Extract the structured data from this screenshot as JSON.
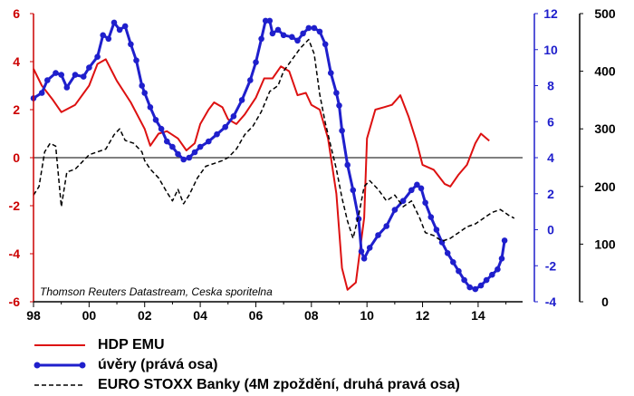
{
  "chart_data": {
    "type": "line",
    "annotation": "Thomson Reuters Datastream, Ceska sporitelna",
    "x_ticks": [
      "98",
      "00",
      "02",
      "04",
      "06",
      "08",
      "10",
      "12",
      "14"
    ],
    "axes": {
      "left": {
        "ylim": [
          -6,
          6
        ],
        "ticks": [
          "6",
          "4",
          "2",
          "0",
          "-2",
          "-4",
          "-6"
        ],
        "color": "#cc0000"
      },
      "right1": {
        "ylim": [
          -4,
          12
        ],
        "ticks": [
          "12",
          "10",
          "8",
          "6",
          "4",
          "2",
          "0",
          "-2",
          "-4"
        ],
        "color": "#1f1fcc"
      },
      "right2": {
        "ylim": [
          0,
          500
        ],
        "ticks": [
          "500",
          "400",
          "300",
          "200",
          "100",
          "0"
        ],
        "color": "#000000"
      }
    },
    "series": [
      {
        "name": "HDP EMU",
        "axis": "left",
        "color": "#dd1111",
        "style": "solid",
        "points": [
          [
            1998.0,
            3.7
          ],
          [
            1998.3,
            3.0
          ],
          [
            1998.7,
            2.4
          ],
          [
            1999.0,
            1.9
          ],
          [
            1999.5,
            2.2
          ],
          [
            2000.0,
            3.0
          ],
          [
            2000.3,
            3.9
          ],
          [
            2000.6,
            4.1
          ],
          [
            2001.0,
            3.2
          ],
          [
            2001.5,
            2.3
          ],
          [
            2002.0,
            1.2
          ],
          [
            2002.2,
            0.5
          ],
          [
            2002.5,
            1.0
          ],
          [
            2002.8,
            1.1
          ],
          [
            2003.2,
            0.8
          ],
          [
            2003.5,
            0.3
          ],
          [
            2003.8,
            0.6
          ],
          [
            2004.0,
            1.4
          ],
          [
            2004.3,
            2.0
          ],
          [
            2004.5,
            2.3
          ],
          [
            2004.8,
            2.1
          ],
          [
            2005.0,
            1.6
          ],
          [
            2005.3,
            1.4
          ],
          [
            2005.6,
            1.8
          ],
          [
            2006.0,
            2.5
          ],
          [
            2006.3,
            3.3
          ],
          [
            2006.6,
            3.3
          ],
          [
            2006.9,
            3.8
          ],
          [
            2007.2,
            3.6
          ],
          [
            2007.5,
            2.6
          ],
          [
            2007.8,
            2.7
          ],
          [
            2008.0,
            2.2
          ],
          [
            2008.3,
            2.0
          ],
          [
            2008.6,
            0.8
          ],
          [
            2008.9,
            -1.5
          ],
          [
            2009.1,
            -4.6
          ],
          [
            2009.3,
            -5.5
          ],
          [
            2009.6,
            -5.2
          ],
          [
            2009.9,
            -2.5
          ],
          [
            2010.0,
            0.8
          ],
          [
            2010.3,
            2.0
          ],
          [
            2010.6,
            2.1
          ],
          [
            2010.9,
            2.2
          ],
          [
            2011.2,
            2.6
          ],
          [
            2011.5,
            1.7
          ],
          [
            2011.8,
            0.6
          ],
          [
            2012.0,
            -0.3
          ],
          [
            2012.4,
            -0.5
          ],
          [
            2012.8,
            -1.1
          ],
          [
            2013.0,
            -1.2
          ],
          [
            2013.3,
            -0.7
          ],
          [
            2013.6,
            -0.3
          ],
          [
            2013.9,
            0.6
          ],
          [
            2014.1,
            1.0
          ],
          [
            2014.4,
            0.7
          ]
        ]
      },
      {
        "name": "úvěry (prává osa)",
        "axis": "right1",
        "color": "#1f1fcc",
        "style": "solid-markers",
        "points": [
          [
            1998.0,
            7.3
          ],
          [
            1998.3,
            7.6
          ],
          [
            1998.5,
            8.3
          ],
          [
            1998.8,
            8.7
          ],
          [
            1999.0,
            8.6
          ],
          [
            1999.2,
            7.9
          ],
          [
            1999.5,
            8.6
          ],
          [
            1999.8,
            8.5
          ],
          [
            2000.0,
            9.0
          ],
          [
            2000.3,
            9.6
          ],
          [
            2000.5,
            10.8
          ],
          [
            2000.7,
            10.6
          ],
          [
            2000.9,
            11.5
          ],
          [
            2001.1,
            11.1
          ],
          [
            2001.3,
            11.3
          ],
          [
            2001.5,
            10.3
          ],
          [
            2001.7,
            9.4
          ],
          [
            2001.9,
            8.0
          ],
          [
            2002.0,
            7.6
          ],
          [
            2002.2,
            6.8
          ],
          [
            2002.4,
            6.1
          ],
          [
            2002.6,
            5.6
          ],
          [
            2002.8,
            4.9
          ],
          [
            2003.0,
            4.6
          ],
          [
            2003.2,
            4.2
          ],
          [
            2003.4,
            3.9
          ],
          [
            2003.6,
            4.0
          ],
          [
            2003.8,
            4.3
          ],
          [
            2004.0,
            4.6
          ],
          [
            2004.3,
            4.9
          ],
          [
            2004.6,
            5.3
          ],
          [
            2004.9,
            5.7
          ],
          [
            2005.2,
            6.3
          ],
          [
            2005.5,
            7.2
          ],
          [
            2005.8,
            8.3
          ],
          [
            2006.0,
            9.3
          ],
          [
            2006.2,
            10.6
          ],
          [
            2006.35,
            11.6
          ],
          [
            2006.5,
            11.6
          ],
          [
            2006.6,
            10.9
          ],
          [
            2006.8,
            11.1
          ],
          [
            2007.0,
            10.8
          ],
          [
            2007.3,
            10.7
          ],
          [
            2007.5,
            10.5
          ],
          [
            2007.7,
            10.9
          ],
          [
            2007.9,
            11.2
          ],
          [
            2008.1,
            11.2
          ],
          [
            2008.3,
            11.0
          ],
          [
            2008.5,
            10.3
          ],
          [
            2008.7,
            8.7
          ],
          [
            2008.9,
            7.6
          ],
          [
            2009.0,
            6.9
          ],
          [
            2009.1,
            5.5
          ],
          [
            2009.3,
            3.6
          ],
          [
            2009.5,
            2.2
          ],
          [
            2009.7,
            0.6
          ],
          [
            2009.8,
            -1.2
          ],
          [
            2009.9,
            -1.6
          ],
          [
            2010.1,
            -1.0
          ],
          [
            2010.4,
            -0.3
          ],
          [
            2010.7,
            0.2
          ],
          [
            2011.0,
            1.1
          ],
          [
            2011.3,
            1.6
          ],
          [
            2011.6,
            2.2
          ],
          [
            2011.8,
            2.5
          ],
          [
            2011.95,
            2.3
          ],
          [
            2012.1,
            1.5
          ],
          [
            2012.3,
            0.7
          ],
          [
            2012.5,
            0.0
          ],
          [
            2012.7,
            -0.7
          ],
          [
            2012.9,
            -1.3
          ],
          [
            2013.1,
            -1.8
          ],
          [
            2013.3,
            -2.3
          ],
          [
            2013.5,
            -2.8
          ],
          [
            2013.7,
            -3.2
          ],
          [
            2013.9,
            -3.3
          ],
          [
            2014.1,
            -3.1
          ],
          [
            2014.3,
            -2.8
          ],
          [
            2014.5,
            -2.5
          ],
          [
            2014.7,
            -2.2
          ],
          [
            2014.85,
            -1.6
          ],
          [
            2014.95,
            -0.6
          ]
        ]
      },
      {
        "name": "EURO STOXX Banky (4M zpoždění, druhá pravá osa)",
        "axis": "right2",
        "color": "#000000",
        "style": "dashed",
        "points": [
          [
            1998.0,
            185
          ],
          [
            1998.2,
            200
          ],
          [
            1998.4,
            260
          ],
          [
            1998.6,
            275
          ],
          [
            1998.8,
            270
          ],
          [
            1999.0,
            165
          ],
          [
            1999.2,
            225
          ],
          [
            1999.5,
            230
          ],
          [
            1999.8,
            245
          ],
          [
            2000.0,
            255
          ],
          [
            2000.3,
            260
          ],
          [
            2000.6,
            265
          ],
          [
            2000.9,
            290
          ],
          [
            2001.1,
            300
          ],
          [
            2001.3,
            280
          ],
          [
            2001.6,
            275
          ],
          [
            2001.9,
            260
          ],
          [
            2002.0,
            245
          ],
          [
            2002.2,
            230
          ],
          [
            2002.5,
            215
          ],
          [
            2002.8,
            190
          ],
          [
            2003.0,
            175
          ],
          [
            2003.2,
            195
          ],
          [
            2003.4,
            170
          ],
          [
            2003.6,
            185
          ],
          [
            2003.9,
            215
          ],
          [
            2004.2,
            235
          ],
          [
            2004.5,
            240
          ],
          [
            2004.8,
            245
          ],
          [
            2005.0,
            250
          ],
          [
            2005.3,
            265
          ],
          [
            2005.6,
            290
          ],
          [
            2005.9,
            305
          ],
          [
            2006.2,
            330
          ],
          [
            2006.5,
            365
          ],
          [
            2006.8,
            375
          ],
          [
            2007.0,
            400
          ],
          [
            2007.3,
            420
          ],
          [
            2007.6,
            440
          ],
          [
            2007.9,
            455
          ],
          [
            2008.1,
            430
          ],
          [
            2008.3,
            360
          ],
          [
            2008.5,
            310
          ],
          [
            2008.7,
            270
          ],
          [
            2008.9,
            230
          ],
          [
            2009.1,
            180
          ],
          [
            2009.3,
            140
          ],
          [
            2009.5,
            110
          ],
          [
            2009.7,
            150
          ],
          [
            2009.9,
            200
          ],
          [
            2010.1,
            210
          ],
          [
            2010.4,
            195
          ],
          [
            2010.7,
            175
          ],
          [
            2011.0,
            185
          ],
          [
            2011.3,
            165
          ],
          [
            2011.6,
            175
          ],
          [
            2011.9,
            145
          ],
          [
            2012.1,
            120
          ],
          [
            2012.4,
            115
          ],
          [
            2012.7,
            105
          ],
          [
            2013.0,
            110
          ],
          [
            2013.3,
            120
          ],
          [
            2013.6,
            130
          ],
          [
            2013.9,
            135
          ],
          [
            2014.2,
            145
          ],
          [
            2014.5,
            155
          ],
          [
            2014.8,
            160
          ],
          [
            2015.1,
            150
          ],
          [
            2015.3,
            145
          ]
        ]
      }
    ]
  },
  "legend": {
    "hdp": "HDP EMU",
    "uvery": "úvěry (prává osa)",
    "stoxx": "EURO STOXX Banky (4M zpoždění, druhá pravá osa)"
  }
}
